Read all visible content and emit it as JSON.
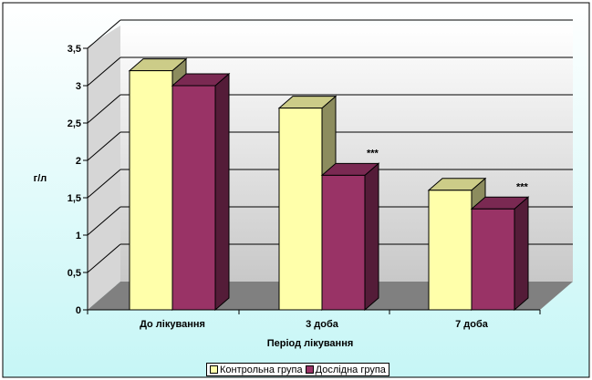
{
  "chart_data": {
    "type": "bar",
    "categories": [
      "До лікування",
      "3 доба",
      "7 доба"
    ],
    "series": [
      {
        "name": "Контрольна група",
        "values": [
          3.2,
          2.7,
          1.6
        ],
        "color": "#FFFFAA"
      },
      {
        "name": "Дослідна група",
        "values": [
          3.0,
          1.8,
          1.35
        ],
        "color": "#993366"
      }
    ],
    "annotations": [
      {
        "category_index": 1,
        "series_index": 1,
        "text": "***"
      },
      {
        "category_index": 2,
        "series_index": 1,
        "text": "***"
      }
    ],
    "xlabel": "Період лікування",
    "ylabel": "г/л",
    "ylim": [
      0,
      3.5
    ],
    "yticks": [
      "0",
      "0,5",
      "1",
      "1,5",
      "2",
      "2,5",
      "3",
      "3,5"
    ],
    "grid": true,
    "legend_position": "bottom",
    "colors": {
      "background_top": "#FFFFFF",
      "background_bottom": "#C6F6F6",
      "floor": "#808080",
      "wall": "#C0C0C0"
    }
  }
}
